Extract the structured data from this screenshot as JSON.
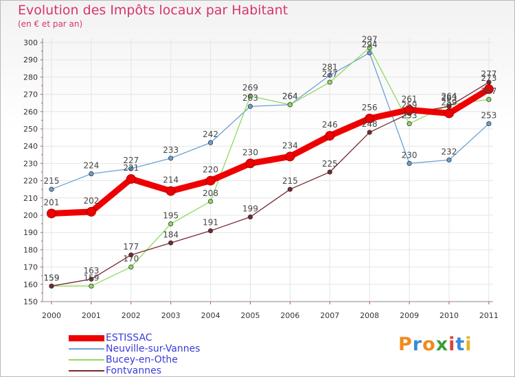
{
  "chart_data": {
    "type": "line",
    "title": "Evolution des Impôts locaux par Habitant",
    "subtitle": "(en € et par an)",
    "xlabel": "",
    "ylabel": "",
    "categories": [
      "2000",
      "2001",
      "2002",
      "2003",
      "2004",
      "2005",
      "2006",
      "2007",
      "2008",
      "2009",
      "2010",
      "2011"
    ],
    "ylim": [
      150,
      300
    ],
    "yticks": [
      150,
      160,
      170,
      180,
      190,
      200,
      210,
      220,
      230,
      240,
      250,
      260,
      270,
      280,
      290,
      300
    ],
    "grid": true,
    "legend_position": "bottom-left",
    "series": [
      {
        "name": "ESTISSAC",
        "color": "#ee0000",
        "values": [
          201,
          202,
          221,
          214,
          220,
          230,
          234,
          246,
          256,
          261,
          259,
          273
        ],
        "labels": [
          "201",
          "202",
          "221",
          "214",
          "220",
          "230",
          "234",
          "246",
          "256",
          "261",
          "259",
          "273"
        ]
      },
      {
        "name": "Neuville-sur-Vannes",
        "color": "#6aa0d2",
        "values": [
          215,
          224,
          227,
          233,
          242,
          263,
          264,
          281,
          294,
          230,
          232,
          253
        ],
        "labels": [
          "215",
          "224",
          "227",
          "233",
          "242",
          "263",
          "264",
          "281",
          "294",
          "230",
          "232",
          "253"
        ]
      },
      {
        "name": "Bucey-en-Othe",
        "color": "#90d860",
        "values": [
          159,
          159,
          170,
          195,
          208,
          269,
          264,
          277,
          297,
          253,
          264,
          267
        ],
        "labels": [
          "159",
          "159",
          "170",
          "195",
          "208",
          "269",
          "264",
          "277",
          "297",
          "253",
          "264",
          "267"
        ]
      },
      {
        "name": "Fontvannes",
        "color": "#7a2630",
        "values": [
          159,
          163,
          177,
          184,
          191,
          199,
          215,
          225,
          248,
          259,
          263,
          277
        ],
        "labels": [
          "159",
          "163",
          "177",
          "184",
          "191",
          "199",
          "215",
          "225",
          "248",
          "259",
          "263",
          "277"
        ]
      }
    ]
  },
  "brand": {
    "letters": [
      "P",
      "r",
      "o",
      "x",
      "i",
      "t",
      "i"
    ],
    "colors": [
      "#f08a1c",
      "#3a8ad8",
      "#f08a1c",
      "#3aa03a",
      "#e04040",
      "#3a8ad8",
      "#e8b020"
    ]
  }
}
